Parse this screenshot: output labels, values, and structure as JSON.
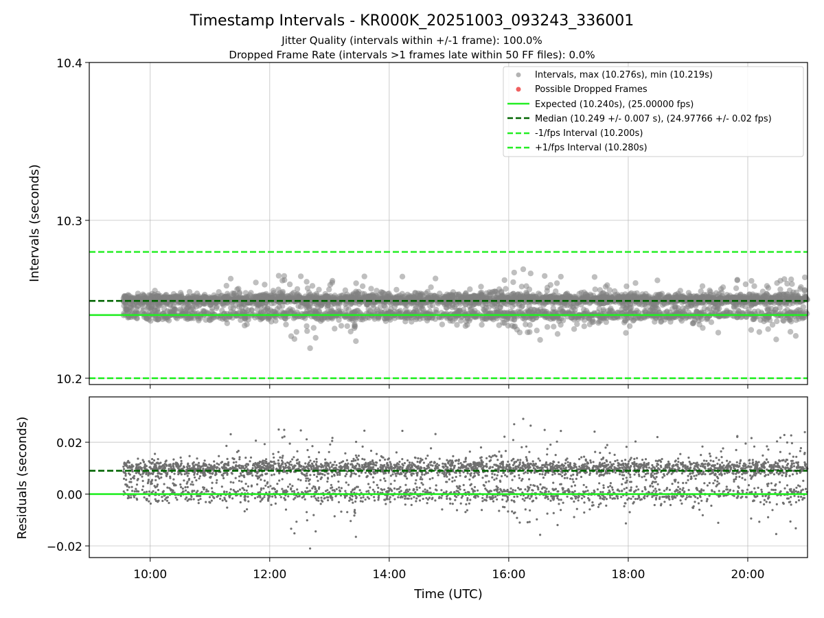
{
  "chart_data": [
    {
      "type": "scatter",
      "title": "Timestamp Intervals - KR000K_20251003_093243_336001",
      "subtitle_lines": [
        "Jitter Quality (intervals within +/-1 frame): 100.0%",
        "Dropped Frame Rate (intervals >1 frames late within 50 FF files): 0.0%"
      ],
      "ylabel": "Intervals (seconds)",
      "xlim_hours": [
        8.98,
        21.0
      ],
      "ylim": [
        10.196,
        10.4
      ],
      "yticks": [
        10.2,
        10.3,
        10.4
      ],
      "ytick_labels": [
        "10.2",
        "10.3",
        "10.4"
      ],
      "grid": true,
      "legend": {
        "placement": "top-right",
        "entries": [
          "Intervals, max (10.276s), min (10.219s)",
          "Possible Dropped Frames",
          "Expected (10.240s), (25.00000 fps)",
          "Median (10.249 +/- 0.007 s), (24.97766 +/- 0.02 fps)",
          "-1/fps Interval (10.200s)",
          "+1/fps Interval (10.280s)"
        ]
      },
      "colors": {
        "points": "#808080",
        "dropped": "#f06060",
        "expected": "#22ee22",
        "median": "#006400",
        "fps_bound": "#22ee22"
      },
      "reference_lines": [
        {
          "name": "expected",
          "y": 10.24,
          "style": "solid"
        },
        {
          "name": "median",
          "y": 10.249,
          "style": "dashed"
        },
        {
          "name": "minus_fps",
          "y": 10.2,
          "style": "dashed"
        },
        {
          "name": "plus_fps",
          "y": 10.28,
          "style": "dashed"
        }
      ],
      "series": {
        "name": "Intervals",
        "start_hour": 9.55,
        "end_hour": 21.0,
        "count": 4000,
        "median": 10.249,
        "expected": 10.24,
        "max": 10.276,
        "min": 10.219
      }
    },
    {
      "type": "scatter",
      "xlabel": "Time (UTC)",
      "ylabel": "Residuals (seconds)",
      "xlim_hours": [
        8.98,
        21.0
      ],
      "ylim": [
        -0.0245,
        0.0375
      ],
      "yticks": [
        -0.02,
        0.0,
        0.02
      ],
      "ytick_labels": [
        "−0.02",
        "0.00",
        "0.02"
      ],
      "xticks_hours": [
        10,
        12,
        14,
        16,
        18,
        20
      ],
      "xtick_labels": [
        "10:00",
        "12:00",
        "14:00",
        "16:00",
        "18:00",
        "20:00"
      ],
      "grid": true,
      "reference_lines": [
        {
          "name": "zero",
          "y": 0.0,
          "style": "solid"
        },
        {
          "name": "median_residual",
          "y": 0.009,
          "style": "dashed"
        }
      ]
    }
  ]
}
